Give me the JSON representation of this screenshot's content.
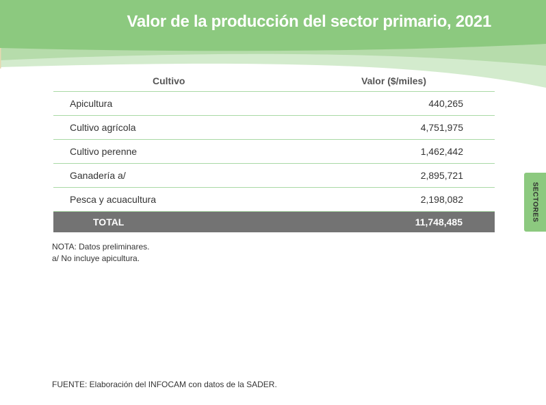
{
  "header": {
    "title": "Valor de la producción del sector primario, 2021"
  },
  "side_tab": {
    "label": "SECTORES"
  },
  "table": {
    "columns": [
      "Cultivo",
      "Valor ($/miles)"
    ],
    "rows": [
      {
        "name": "Apicultura",
        "value": "440,265"
      },
      {
        "name": "Cultivo agrícola",
        "value": "4,751,975"
      },
      {
        "name": "Cultivo perenne",
        "value": "1,462,442"
      },
      {
        "name": "Ganadería a/",
        "value": "2,895,721"
      },
      {
        "name": "Pesca y acuacultura",
        "value": "2,198,082"
      }
    ],
    "total": {
      "label": "TOTAL",
      "value": "11,748,485"
    }
  },
  "notes": [
    "NOTA: Datos preliminares.",
    "a/ No incluye apicultura."
  ],
  "source": "FUENTE: Elaboración del INFOCAM con datos de la SADER.",
  "colors": {
    "banner_green": "#8cc97f",
    "banner_light": "#cfe8c8",
    "row_divider": "#a8d8a4",
    "total_row": "#737373",
    "side_tab": "#8cc97f"
  }
}
